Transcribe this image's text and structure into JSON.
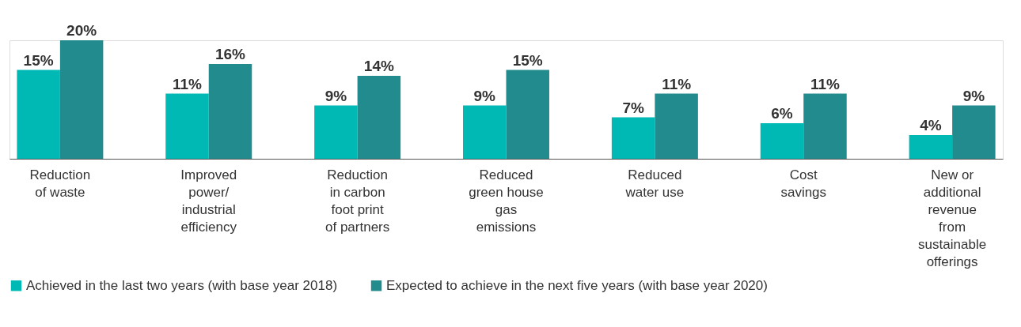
{
  "chart_data": {
    "type": "bar",
    "categories": [
      "Reduction of waste",
      "Improved power/ industrial efficiency",
      "Reduction in carbon foot print of partners",
      "Reduced green house gas emissions",
      "Reduced water use",
      "Cost savings",
      "New or additional revenue from sustainable offerings"
    ],
    "series": [
      {
        "name": "Achieved in the last two years (with base year 2018)",
        "color": "#00b9b5",
        "values": [
          15,
          11,
          9,
          9,
          7,
          6,
          4
        ],
        "value_labels": [
          "15%",
          "11%",
          "9%",
          "9%",
          "7%",
          "6%",
          "4%"
        ]
      },
      {
        "name": "Expected to achieve in the next five years (with base year 2020)",
        "color": "#218b8e",
        "values": [
          20,
          16,
          14,
          15,
          11,
          11,
          9
        ],
        "value_labels": [
          "20%",
          "16%",
          "14%",
          "15%",
          "11%",
          "11%",
          "9%"
        ]
      }
    ],
    "legend": "bottom left"
  }
}
